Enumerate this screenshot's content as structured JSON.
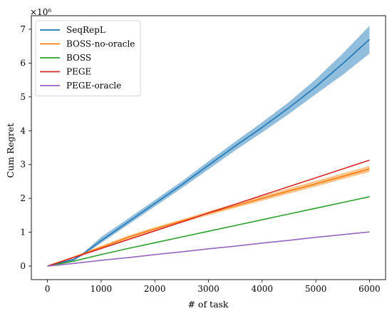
{
  "chart_data": {
    "type": "line",
    "xlabel": "# of task",
    "ylabel": "Cum Regret",
    "y_multiplier": "×10⁶",
    "xlim": [
      -300,
      6300
    ],
    "ylim": [
      -0.4,
      7.4
    ],
    "xticks": [
      0,
      1000,
      2000,
      3000,
      4000,
      5000,
      6000
    ],
    "xtick_labels": [
      "0",
      "1000",
      "2000",
      "3000",
      "4000",
      "5000",
      "6000"
    ],
    "yticks": [
      0,
      1,
      2,
      3,
      4,
      5,
      6,
      7
    ],
    "ytick_labels": [
      "0",
      "1",
      "2",
      "3",
      "4",
      "5",
      "6",
      "7"
    ],
    "grid": false,
    "legend_position": "top-left",
    "series": [
      {
        "name": "SeqRepL",
        "color": "#1f77b4",
        "band_color": "#7fb3d8",
        "x": [
          0,
          500,
          700,
          1000,
          1500,
          2000,
          2500,
          3000,
          3500,
          4000,
          4500,
          5000,
          5500,
          6000
        ],
        "y": [
          0,
          0.2,
          0.4,
          0.75,
          1.3,
          1.85,
          2.4,
          2.98,
          3.55,
          4.1,
          4.68,
          5.3,
          5.98,
          6.7
        ],
        "y_lower": [
          0,
          0.17,
          0.36,
          0.68,
          1.22,
          1.76,
          2.3,
          2.86,
          3.42,
          3.95,
          4.5,
          5.08,
          5.65,
          6.28
        ],
        "y_upper": [
          0,
          0.23,
          0.44,
          0.86,
          1.4,
          1.95,
          2.5,
          3.1,
          3.68,
          4.25,
          4.85,
          5.52,
          6.28,
          7.1
        ]
      },
      {
        "name": "BOSS-no-oracle",
        "color": "#ff7f0e",
        "band_color": "#ffbb78",
        "x": [
          0,
          500,
          1000,
          1500,
          2000,
          2500,
          3000,
          3500,
          4000,
          4500,
          5000,
          5500,
          6000
        ],
        "y": [
          0,
          0.27,
          0.55,
          0.85,
          1.1,
          1.33,
          1.56,
          1.78,
          2.0,
          2.22,
          2.43,
          2.65,
          2.87
        ],
        "y_lower": [
          0,
          0.25,
          0.5,
          0.8,
          1.05,
          1.28,
          1.5,
          1.72,
          1.93,
          2.14,
          2.35,
          2.57,
          2.78
        ],
        "y_upper": [
          0,
          0.29,
          0.6,
          0.9,
          1.15,
          1.38,
          1.62,
          1.84,
          2.07,
          2.3,
          2.52,
          2.74,
          2.96
        ]
      },
      {
        "name": "BOSS",
        "color": "#2ca02c",
        "x": [
          0,
          500,
          1000,
          1500,
          2000,
          2500,
          3000,
          3500,
          4000,
          4500,
          5000,
          5500,
          6000
        ],
        "y": [
          0,
          0.15,
          0.34,
          0.52,
          0.69,
          0.86,
          1.03,
          1.2,
          1.37,
          1.54,
          1.71,
          1.88,
          2.05
        ]
      },
      {
        "name": "PEGE",
        "color": "#d62728",
        "x": [
          0,
          500,
          1000,
          1500,
          2000,
          2500,
          3000,
          3500,
          4000,
          4500,
          5000,
          5500,
          6000
        ],
        "y": [
          0,
          0.26,
          0.52,
          0.78,
          1.04,
          1.3,
          1.57,
          1.83,
          2.09,
          2.35,
          2.61,
          2.87,
          3.13
        ]
      },
      {
        "name": "PEGE-oracle",
        "color": "#9467bd",
        "x": [
          0,
          500,
          1000,
          1500,
          2000,
          2500,
          3000,
          3500,
          4000,
          4500,
          5000,
          5500,
          6000
        ],
        "y": [
          0,
          0.08,
          0.17,
          0.25,
          0.34,
          0.42,
          0.51,
          0.59,
          0.68,
          0.76,
          0.85,
          0.93,
          1.01
        ]
      }
    ]
  }
}
